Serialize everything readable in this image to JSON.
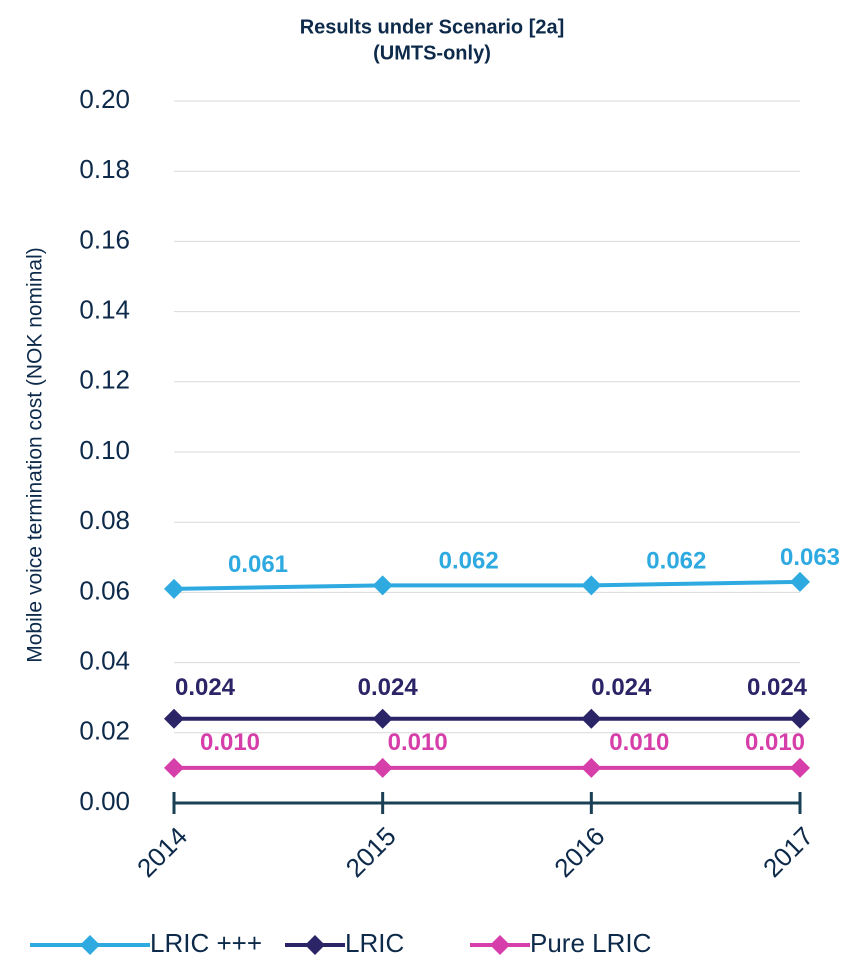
{
  "chart_data": {
    "type": "line",
    "title": "Results under Scenario [2a]",
    "subtitle": "(UMTS-only)",
    "y_label": "Mobile voice termination cost (NOK nominal)",
    "categories": [
      "2014",
      "2015",
      "2016",
      "2017"
    ],
    "series": [
      {
        "name": "LRIC +++",
        "color": "#2eaae1",
        "values": [
          0.061,
          0.062,
          0.062,
          0.063
        ]
      },
      {
        "name": "LRIC",
        "color": "#2b2467",
        "values": [
          0.024,
          0.024,
          0.024,
          0.024
        ]
      },
      {
        "name": "Pure LRIC",
        "color": "#d63fa9",
        "values": [
          0.01,
          0.01,
          0.01,
          0.01
        ],
        "value_labels": [
          "0.010",
          "0.010",
          "0.010",
          "0.010"
        ]
      }
    ],
    "ylim": [
      0,
      0.2
    ],
    "yticks": [
      {
        "value": 0,
        "label": "0.00"
      },
      {
        "value": 0.02,
        "label": "0.02"
      },
      {
        "value": 0.04,
        "label": "0.04"
      },
      {
        "value": 0.06,
        "label": "0.06"
      },
      {
        "value": 0.08,
        "label": "0.08"
      },
      {
        "value": 0.1,
        "label": "0.10"
      },
      {
        "value": 0.12,
        "label": "0.12"
      },
      {
        "value": 0.14,
        "label": "0.14"
      },
      {
        "value": 0.16,
        "label": "0.16"
      },
      {
        "value": 0.18,
        "label": "0.18"
      },
      {
        "value": 0.2,
        "label": "0.20"
      }
    ],
    "grid": true,
    "legend": "bottom"
  }
}
